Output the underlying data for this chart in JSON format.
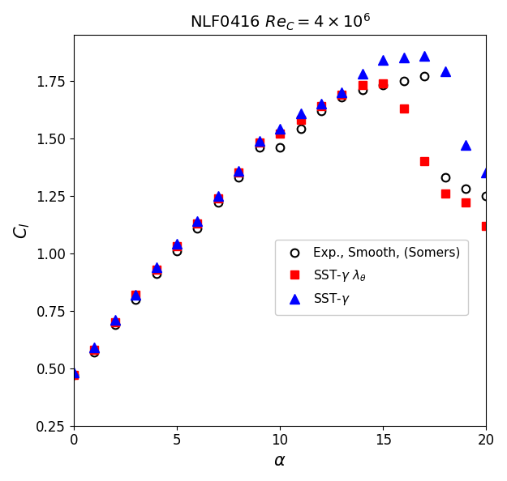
{
  "title": "NLF0416 $\\mathit{Re}_C = 4 \\times 10^6$",
  "xlabel": "$\\alpha$",
  "ylabel": "$C_l$",
  "xlim": [
    0,
    20
  ],
  "ylim": [
    0.25,
    1.95
  ],
  "yticks": [
    0.25,
    0.5,
    0.75,
    1.0,
    1.25,
    1.5,
    1.75
  ],
  "xticks": [
    0,
    5,
    10,
    15,
    20
  ],
  "exp_alpha": [
    0.0,
    1.0,
    2.0,
    3.0,
    4.0,
    5.0,
    6.0,
    7.0,
    8.0,
    9.0,
    10.0,
    11.0,
    12.0,
    13.0,
    14.0,
    15.0,
    16.0,
    17.0,
    18.0,
    19.0,
    20.0
  ],
  "exp_cl": [
    0.47,
    0.57,
    0.69,
    0.8,
    0.91,
    1.01,
    1.11,
    1.22,
    1.33,
    1.46,
    1.46,
    1.54,
    1.62,
    1.68,
    1.71,
    1.73,
    1.75,
    1.77,
    1.33,
    1.28,
    1.25
  ],
  "sst_gl_alpha": [
    0.0,
    1.0,
    2.0,
    3.0,
    4.0,
    5.0,
    6.0,
    7.0,
    8.0,
    9.0,
    10.0,
    11.0,
    12.0,
    13.0,
    14.0,
    15.0,
    16.0,
    17.0,
    18.0,
    19.0,
    20.0
  ],
  "sst_gl_cl": [
    0.47,
    0.58,
    0.7,
    0.82,
    0.93,
    1.03,
    1.13,
    1.24,
    1.35,
    1.48,
    1.52,
    1.58,
    1.64,
    1.69,
    1.73,
    1.74,
    1.63,
    1.4,
    1.26,
    1.22,
    1.12
  ],
  "sst_g_alpha": [
    0.0,
    1.0,
    2.0,
    3.0,
    4.0,
    5.0,
    6.0,
    7.0,
    8.0,
    9.0,
    10.0,
    11.0,
    12.0,
    13.0,
    14.0,
    15.0,
    16.0,
    17.0,
    18.0,
    19.0,
    20.0
  ],
  "sst_g_cl": [
    0.48,
    0.59,
    0.71,
    0.82,
    0.94,
    1.04,
    1.14,
    1.25,
    1.36,
    1.49,
    1.54,
    1.61,
    1.65,
    1.7,
    1.78,
    1.84,
    1.85,
    1.86,
    1.79,
    1.47,
    1.35
  ],
  "exp_color": "black",
  "sst_gl_color": "red",
  "sst_g_color": "blue",
  "legend_labels": [
    "Exp., Smooth, (Somers)",
    "SST-$\\gamma$ $\\lambda_{\\theta}$",
    "SST-$\\gamma$"
  ],
  "figsize": [
    6.25,
    5.94
  ],
  "dpi": 100
}
